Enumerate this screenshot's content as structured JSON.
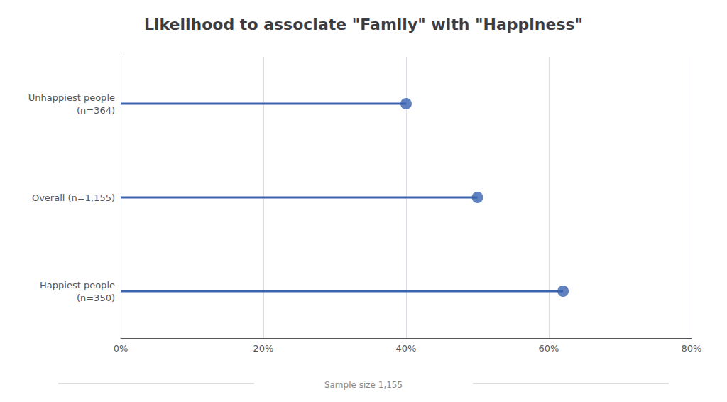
{
  "chart_data": {
    "type": "lollipop",
    "orientation": "horizontal",
    "title": "Likelihood to associate \"Family\" with \"Happiness\"",
    "categories": [
      "Happiest people\n(n=350)",
      "Overall (n=1,155)",
      "Unhappiest people\n(n=364)"
    ],
    "values": [
      62,
      50,
      40
    ],
    "color": "#3A63B0",
    "xlim": [
      0,
      80
    ],
    "xticks": [
      {
        "value": 0,
        "label": "0%"
      },
      {
        "value": 20,
        "label": "20%"
      },
      {
        "value": 40,
        "label": "40%"
      },
      {
        "value": 60,
        "label": "60%"
      },
      {
        "value": 80,
        "label": "80%"
      }
    ],
    "grid": true,
    "annotation": "Sample size 1,155"
  }
}
